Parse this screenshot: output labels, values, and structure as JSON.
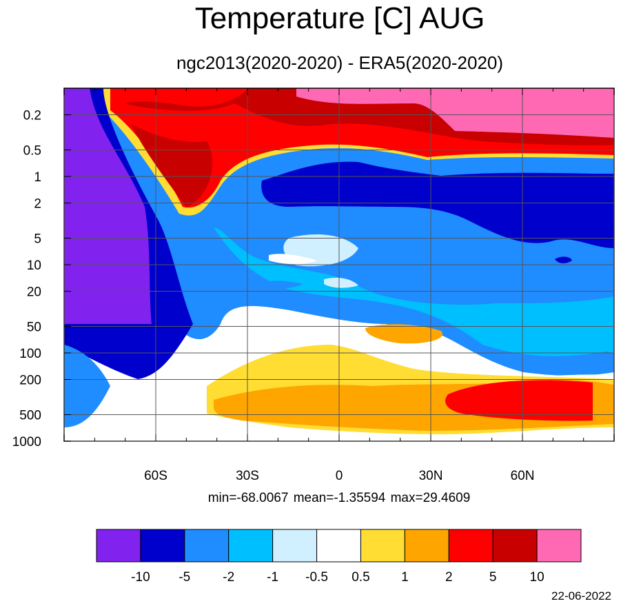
{
  "chart_data": {
    "type": "heatmap",
    "title": "Temperature [C] AUG",
    "subtitle": "ngc2013(2020-2020) - ERA5(2020-2020)",
    "stats": {
      "min": "-68.0067",
      "mean": "-1.35594",
      "max": "29.4609"
    },
    "stats_text": "min=-68.0067   mean=-1.35594   max=29.4609",
    "x_ticks": [
      "60S",
      "30S",
      "0",
      "30N",
      "60N"
    ],
    "x_tick_values": [
      -60,
      -30,
      0,
      30,
      60
    ],
    "xlim": [
      -90,
      90
    ],
    "y_ticks": [
      "0.2",
      "0.5",
      "1",
      "2",
      "5",
      "10",
      "20",
      "50",
      "100",
      "200",
      "500",
      "1000"
    ],
    "y_tick_values": [
      0.2,
      0.5,
      1,
      2,
      5,
      10,
      20,
      50,
      100,
      200,
      500,
      1000
    ],
    "ylim": [
      1000,
      0.1
    ],
    "y_scale": "log",
    "grid": true,
    "colorbar": {
      "levels": [
        "-10",
        "-5",
        "-2",
        "-1",
        "-0.5",
        "0.5",
        "1",
        "2",
        "5",
        "10"
      ],
      "colors": [
        "#8122ee",
        "#0000cc",
        "#1f8cff",
        "#00bfff",
        "#d0f0ff",
        "#ffffff",
        "#ffdd33",
        "#ffa500",
        "#ff0000",
        "#c80000",
        "#ff69b4"
      ]
    }
  },
  "footer": {
    "date": "22-06-2022"
  }
}
